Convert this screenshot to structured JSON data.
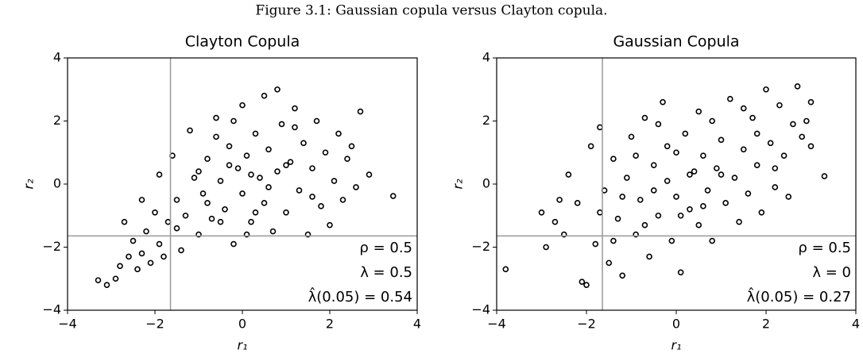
{
  "title": "Figure 3.1: Gaussian copula versus Clayton copula.",
  "chart_data": [
    {
      "type": "scatter",
      "title": "Clayton Copula",
      "xlabel": "r₁",
      "ylabel": "r₂",
      "xlim": [
        -4,
        4
      ],
      "ylim": [
        -4,
        4
      ],
      "xticks": [
        {
          "value": -4,
          "label": "−4"
        },
        {
          "value": -2,
          "label": "−2"
        },
        0,
        2,
        4
      ],
      "yticks": [
        {
          "value": -4,
          "label": "−4"
        },
        {
          "value": -2,
          "label": "−2"
        },
        0,
        2,
        4
      ],
      "reference_lines": {
        "x": -1.645,
        "y": -1.645
      },
      "color": "#000000",
      "annotations": [
        "ρ = 0.5",
        "λ = 0.5",
        "λ̂(0.05) = 0.54"
      ],
      "x": [
        -3.3,
        -3.1,
        -2.9,
        -2.8,
        -2.6,
        -2.5,
        -2.4,
        -2.3,
        -2.2,
        -2.1,
        -2.0,
        -1.9,
        -1.8,
        -1.7,
        -1.6,
        -1.5,
        -1.4,
        -1.3,
        -1.2,
        -1.1,
        -1.0,
        -0.9,
        -0.8,
        -0.7,
        -0.6,
        -0.5,
        -0.4,
        -0.3,
        -0.2,
        -0.1,
        0.0,
        0.0,
        0.1,
        0.2,
        0.3,
        0.4,
        0.5,
        0.5,
        0.6,
        0.7,
        0.8,
        0.8,
        0.9,
        1.0,
        1.1,
        1.2,
        1.3,
        1.4,
        1.5,
        1.6,
        1.7,
        1.8,
        1.9,
        2.0,
        2.1,
        2.2,
        2.3,
        2.4,
        2.6,
        2.7,
        2.9,
        3.45,
        -0.5,
        -0.3,
        0.2,
        0.6,
        -1.0,
        -0.8,
        1.0,
        0.3,
        -1.5,
        -2.7,
        -1.9,
        -0.2,
        1.2,
        0.1,
        -2.3,
        2.5,
        -0.6,
        1.6
      ],
      "y": [
        -3.05,
        -3.2,
        -3.0,
        -2.6,
        -2.3,
        -1.8,
        -2.7,
        -2.2,
        -1.5,
        -2.5,
        -0.9,
        -1.9,
        -2.3,
        -1.2,
        0.9,
        -0.5,
        -2.1,
        -1.0,
        1.7,
        0.2,
        -1.6,
        -0.3,
        0.8,
        -1.1,
        2.1,
        0.1,
        -0.8,
        1.2,
        -1.9,
        0.5,
        2.5,
        -0.3,
        0.9,
        -1.2,
        1.6,
        0.2,
        2.8,
        -0.6,
        1.1,
        -1.5,
        3.0,
        0.4,
        1.9,
        -0.9,
        0.7,
        2.4,
        -0.2,
        1.3,
        -1.6,
        0.5,
        2.0,
        -0.7,
        1.0,
        -1.3,
        0.1,
        1.6,
        -0.5,
        0.8,
        -0.1,
        2.3,
        0.3,
        -0.38,
        -1.2,
        0.6,
        0.3,
        -0.1,
        0.4,
        -0.6,
        0.6,
        -0.9,
        -1.4,
        -1.2,
        0.3,
        2.0,
        1.8,
        -1.6,
        -0.5,
        1.2,
        1.5,
        -0.4
      ]
    },
    {
      "type": "scatter",
      "title": "Gaussian Copula",
      "xlabel": "r₁",
      "ylabel": "r₂",
      "xlim": [
        -4,
        4
      ],
      "ylim": [
        -4,
        4
      ],
      "xticks": [
        {
          "value": -4,
          "label": "−4"
        },
        {
          "value": -2,
          "label": "−2"
        },
        0,
        2,
        4
      ],
      "yticks": [
        {
          "value": -4,
          "label": "−4"
        },
        {
          "value": -2,
          "label": "−2"
        },
        0,
        2,
        4
      ],
      "reference_lines": {
        "x": -1.645,
        "y": -1.645
      },
      "color": "#000000",
      "annotations": [
        "ρ = 0.5",
        "λ = 0",
        "λ̂(0.05) = 0.27"
      ],
      "x": [
        -3.8,
        -3.0,
        -2.9,
        -2.7,
        -2.5,
        -2.4,
        -2.2,
        -2.1,
        -2.0,
        -1.9,
        -1.8,
        -1.7,
        -1.6,
        -1.5,
        -1.4,
        -1.3,
        -1.2,
        -1.1,
        -1.0,
        -0.9,
        -0.8,
        -0.7,
        -0.6,
        -0.5,
        -0.4,
        -0.3,
        -0.2,
        -0.1,
        0.0,
        0.0,
        0.1,
        0.2,
        0.3,
        0.4,
        0.5,
        0.5,
        0.6,
        0.7,
        0.8,
        0.8,
        0.9,
        1.0,
        1.1,
        1.2,
        1.3,
        1.4,
        1.5,
        1.6,
        1.7,
        1.8,
        1.9,
        2.0,
        2.1,
        2.2,
        2.3,
        2.4,
        2.5,
        2.6,
        2.7,
        2.8,
        2.9,
        3.0,
        3.0,
        3.3,
        -0.5,
        0.3,
        -1.2,
        1.0,
        -0.2,
        0.6,
        -1.7,
        -2.6,
        1.5,
        -0.9,
        0.1,
        2.2,
        -1.4,
        -0.4,
        1.8,
        -0.7
      ],
      "y": [
        -2.7,
        -0.9,
        -2.0,
        -1.2,
        -1.6,
        0.3,
        -0.6,
        -3.1,
        -3.2,
        1.2,
        -1.9,
        1.8,
        -0.2,
        -2.5,
        0.8,
        -1.1,
        -2.9,
        0.2,
        1.5,
        -1.6,
        -0.5,
        2.1,
        -2.3,
        0.6,
        -1.0,
        2.6,
        0.1,
        -1.8,
        1.0,
        -0.4,
        -2.8,
        1.6,
        -0.8,
        0.4,
        2.3,
        -1.3,
        0.9,
        -0.2,
        2.0,
        -1.8,
        0.5,
        1.4,
        -0.6,
        2.7,
        0.2,
        -1.2,
        1.1,
        -0.3,
        2.1,
        0.6,
        -0.9,
        3.0,
        1.3,
        -0.1,
        2.5,
        0.9,
        -0.4,
        1.9,
        3.1,
        1.5,
        2.0,
        1.2,
        2.6,
        0.25,
        -0.2,
        0.3,
        -0.4,
        0.3,
        1.2,
        -0.7,
        -0.9,
        -0.5,
        2.4,
        0.9,
        -1.0,
        0.5,
        -1.8,
        1.9,
        1.6,
        -1.3
      ]
    }
  ]
}
